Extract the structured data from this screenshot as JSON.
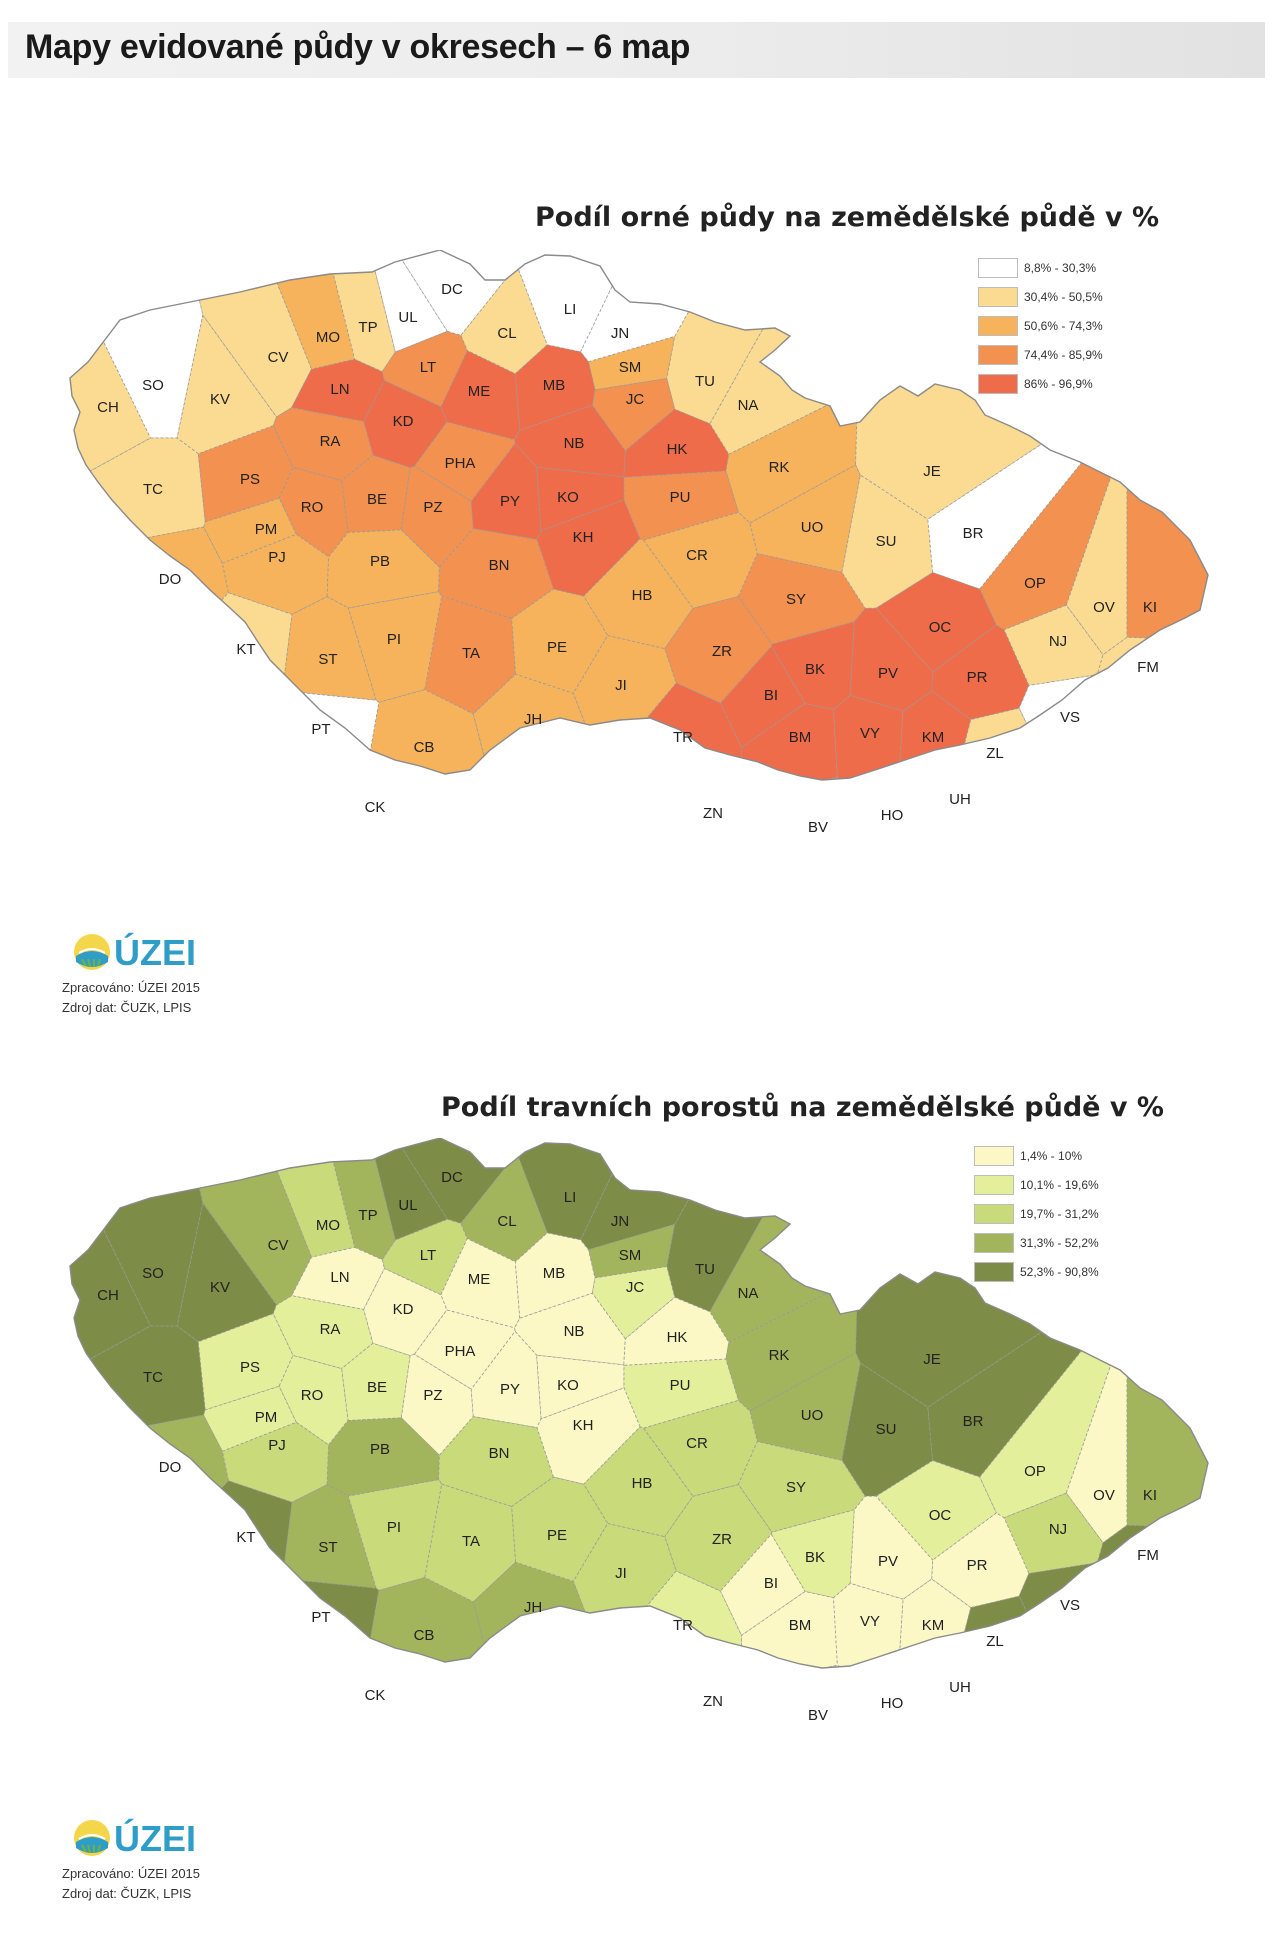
{
  "page_title": "Mapy evidované půdy v okresech – 6 map",
  "maps": [
    {
      "title": "Podíl orné půdy na zemědělské půdě v %",
      "legend": [
        {
          "label": "8,8% - 30,3%",
          "color": "#ffffff"
        },
        {
          "label": "30,4% - 50,5%",
          "color": "#fbdb91"
        },
        {
          "label": "50,6% - 74,3%",
          "color": "#f6b35c"
        },
        {
          "label": "74,4% - 85,9%",
          "color": "#f39150"
        },
        {
          "label": "86% - 96,9%",
          "color": "#ef6c4a"
        }
      ],
      "outline_color": "#f6b35c",
      "districts": [
        {
          "code": "DC",
          "cls": 0
        },
        {
          "code": "LI",
          "cls": 0
        },
        {
          "code": "UL",
          "cls": 0
        },
        {
          "code": "TP",
          "cls": 1
        },
        {
          "code": "CL",
          "cls": 1
        },
        {
          "code": "JN",
          "cls": 0
        },
        {
          "code": "MO",
          "cls": 2
        },
        {
          "code": "CV",
          "cls": 1
        },
        {
          "code": "LT",
          "cls": 3
        },
        {
          "code": "SM",
          "cls": 2
        },
        {
          "code": "TU",
          "cls": 1
        },
        {
          "code": "SO",
          "cls": 0
        },
        {
          "code": "KV",
          "cls": 1
        },
        {
          "code": "CH",
          "cls": 1
        },
        {
          "code": "LN",
          "cls": 4
        },
        {
          "code": "ME",
          "cls": 4
        },
        {
          "code": "MB",
          "cls": 4
        },
        {
          "code": "JC",
          "cls": 3
        },
        {
          "code": "NA",
          "cls": 1
        },
        {
          "code": "KD",
          "cls": 4
        },
        {
          "code": "RA",
          "cls": 3
        },
        {
          "code": "NB",
          "cls": 4
        },
        {
          "code": "HK",
          "cls": 4
        },
        {
          "code": "RK",
          "cls": 2
        },
        {
          "code": "JE",
          "cls": 1
        },
        {
          "code": "TC",
          "cls": 1
        },
        {
          "code": "PS",
          "cls": 3
        },
        {
          "code": "PHA",
          "cls": 3
        },
        {
          "code": "BE",
          "cls": 3
        },
        {
          "code": "RO",
          "cls": 3
        },
        {
          "code": "PZ",
          "cls": 3
        },
        {
          "code": "PY",
          "cls": 4
        },
        {
          "code": "KO",
          "cls": 4
        },
        {
          "code": "PU",
          "cls": 3
        },
        {
          "code": "PM",
          "cls": 2
        },
        {
          "code": "KH",
          "cls": 4
        },
        {
          "code": "UO",
          "cls": 2
        },
        {
          "code": "SU",
          "cls": 1
        },
        {
          "code": "BR",
          "cls": 0
        },
        {
          "code": "PJ",
          "cls": 2
        },
        {
          "code": "PB",
          "cls": 2
        },
        {
          "code": "BN",
          "cls": 3
        },
        {
          "code": "CR",
          "cls": 2
        },
        {
          "code": "DO",
          "cls": 2
        },
        {
          "code": "HB",
          "cls": 2
        },
        {
          "code": "SY",
          "cls": 3
        },
        {
          "code": "OP",
          "cls": 3
        },
        {
          "code": "OV",
          "cls": 1
        },
        {
          "code": "KI",
          "cls": 3
        },
        {
          "code": "OC",
          "cls": 4
        },
        {
          "code": "NJ",
          "cls": 1
        },
        {
          "code": "KT",
          "cls": 1
        },
        {
          "code": "ST",
          "cls": 2
        },
        {
          "code": "PI",
          "cls": 2
        },
        {
          "code": "TA",
          "cls": 3
        },
        {
          "code": "PE",
          "cls": 2
        },
        {
          "code": "ZR",
          "cls": 3
        },
        {
          "code": "BK",
          "cls": 4
        },
        {
          "code": "PV",
          "cls": 4
        },
        {
          "code": "PR",
          "cls": 4
        },
        {
          "code": "FM",
          "cls": 1
        },
        {
          "code": "JI",
          "cls": 2
        },
        {
          "code": "BI",
          "cls": 4
        },
        {
          "code": "VS",
          "cls": 0
        },
        {
          "code": "PT",
          "cls": 0
        },
        {
          "code": "CB",
          "cls": 2
        },
        {
          "code": "JH",
          "cls": 2
        },
        {
          "code": "TR",
          "cls": 4
        },
        {
          "code": "BM",
          "cls": 4
        },
        {
          "code": "VY",
          "cls": 4
        },
        {
          "code": "KM",
          "cls": 4
        },
        {
          "code": "ZL",
          "cls": 1
        },
        {
          "code": "UH",
          "cls": 1
        },
        {
          "code": "CK",
          "cls": 0
        },
        {
          "code": "ZN",
          "cls": 4
        },
        {
          "code": "BV",
          "cls": 3
        },
        {
          "code": "HO",
          "cls": 3
        }
      ],
      "logo": "ÚZEI",
      "credit_line1": "Zpracováno: ÚZEI 2015",
      "credit_line2": "Zdroj dat: ČUZK, LPIS"
    },
    {
      "title": "Podíl travních porostů na zemědělské půdě v %",
      "legend": [
        {
          "label": "1,4% - 10%",
          "color": "#fbf8c6"
        },
        {
          "label": "10,1% - 19,6%",
          "color": "#e4ef9b"
        },
        {
          "label": "19,7% - 31,2%",
          "color": "#c9da7a"
        },
        {
          "label": "31,3% - 52,2%",
          "color": "#a3b55c"
        },
        {
          "label": "52,3% - 90,8%",
          "color": "#7d8c47"
        }
      ],
      "outline_color": "#a3b55c",
      "districts": [
        {
          "code": "DC",
          "cls": 4
        },
        {
          "code": "LI",
          "cls": 4
        },
        {
          "code": "UL",
          "cls": 4
        },
        {
          "code": "TP",
          "cls": 3
        },
        {
          "code": "CL",
          "cls": 3
        },
        {
          "code": "JN",
          "cls": 4
        },
        {
          "code": "MO",
          "cls": 2
        },
        {
          "code": "CV",
          "cls": 3
        },
        {
          "code": "LT",
          "cls": 2
        },
        {
          "code": "SM",
          "cls": 3
        },
        {
          "code": "TU",
          "cls": 4
        },
        {
          "code": "SO",
          "cls": 4
        },
        {
          "code": "KV",
          "cls": 4
        },
        {
          "code": "CH",
          "cls": 4
        },
        {
          "code": "LN",
          "cls": 0
        },
        {
          "code": "ME",
          "cls": 0
        },
        {
          "code": "MB",
          "cls": 0
        },
        {
          "code": "JC",
          "cls": 1
        },
        {
          "code": "NA",
          "cls": 3
        },
        {
          "code": "KD",
          "cls": 0
        },
        {
          "code": "RA",
          "cls": 1
        },
        {
          "code": "NB",
          "cls": 0
        },
        {
          "code": "HK",
          "cls": 0
        },
        {
          "code": "RK",
          "cls": 3
        },
        {
          "code": "JE",
          "cls": 4
        },
        {
          "code": "TC",
          "cls": 4
        },
        {
          "code": "PS",
          "cls": 1
        },
        {
          "code": "PHA",
          "cls": 0
        },
        {
          "code": "BE",
          "cls": 1
        },
        {
          "code": "RO",
          "cls": 1
        },
        {
          "code": "PZ",
          "cls": 0
        },
        {
          "code": "PY",
          "cls": 0
        },
        {
          "code": "KO",
          "cls": 0
        },
        {
          "code": "PU",
          "cls": 1
        },
        {
          "code": "PM",
          "cls": 1
        },
        {
          "code": "KH",
          "cls": 0
        },
        {
          "code": "UO",
          "cls": 3
        },
        {
          "code": "SU",
          "cls": 4
        },
        {
          "code": "BR",
          "cls": 4
        },
        {
          "code": "PJ",
          "cls": 2
        },
        {
          "code": "PB",
          "cls": 3
        },
        {
          "code": "BN",
          "cls": 2
        },
        {
          "code": "CR",
          "cls": 2
        },
        {
          "code": "DO",
          "cls": 3
        },
        {
          "code": "HB",
          "cls": 2
        },
        {
          "code": "SY",
          "cls": 2
        },
        {
          "code": "OP",
          "cls": 1
        },
        {
          "code": "OV",
          "cls": 0
        },
        {
          "code": "KI",
          "cls": 3
        },
        {
          "code": "OC",
          "cls": 1
        },
        {
          "code": "NJ",
          "cls": 2
        },
        {
          "code": "KT",
          "cls": 4
        },
        {
          "code": "ST",
          "cls": 3
        },
        {
          "code": "PI",
          "cls": 2
        },
        {
          "code": "TA",
          "cls": 2
        },
        {
          "code": "PE",
          "cls": 2
        },
        {
          "code": "ZR",
          "cls": 2
        },
        {
          "code": "BK",
          "cls": 1
        },
        {
          "code": "PV",
          "cls": 0
        },
        {
          "code": "PR",
          "cls": 0
        },
        {
          "code": "FM",
          "cls": 4
        },
        {
          "code": "JI",
          "cls": 2
        },
        {
          "code": "BI",
          "cls": 0
        },
        {
          "code": "VS",
          "cls": 4
        },
        {
          "code": "PT",
          "cls": 4
        },
        {
          "code": "CB",
          "cls": 3
        },
        {
          "code": "JH",
          "cls": 3
        },
        {
          "code": "TR",
          "cls": 1
        },
        {
          "code": "BM",
          "cls": 0
        },
        {
          "code": "VY",
          "cls": 0
        },
        {
          "code": "KM",
          "cls": 0
        },
        {
          "code": "ZL",
          "cls": 4
        },
        {
          "code": "UH",
          "cls": 1
        },
        {
          "code": "CK",
          "cls": 4
        },
        {
          "code": "ZN",
          "cls": 0
        },
        {
          "code": "BV",
          "cls": 0
        },
        {
          "code": "HO",
          "cls": 0
        }
      ],
      "logo": "ÚZEI",
      "credit_line1": "Zpracováno: ÚZEI 2015",
      "credit_line2": "Zdroj dat: ČUZK, LPIS"
    }
  ]
}
